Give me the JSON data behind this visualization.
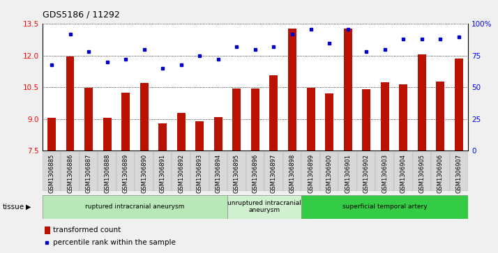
{
  "title": "GDS5186 / 11292",
  "samples": [
    "GSM1306885",
    "GSM1306886",
    "GSM1306887",
    "GSM1306888",
    "GSM1306889",
    "GSM1306890",
    "GSM1306891",
    "GSM1306892",
    "GSM1306893",
    "GSM1306894",
    "GSM1306895",
    "GSM1306896",
    "GSM1306897",
    "GSM1306898",
    "GSM1306899",
    "GSM1306900",
    "GSM1306901",
    "GSM1306902",
    "GSM1306903",
    "GSM1306904",
    "GSM1306905",
    "GSM1306906",
    "GSM1306907"
  ],
  "bar_values": [
    9.05,
    11.95,
    10.48,
    9.05,
    10.25,
    10.72,
    8.78,
    9.3,
    8.88,
    9.1,
    10.45,
    10.43,
    11.08,
    13.28,
    10.48,
    10.22,
    13.28,
    10.4,
    10.75,
    10.65,
    12.05,
    10.78,
    11.85
  ],
  "dot_values_pct": [
    68,
    92,
    78,
    70,
    72,
    80,
    65,
    68,
    75,
    72,
    82,
    80,
    82,
    92,
    96,
    85,
    96,
    78,
    80,
    88,
    88,
    88,
    90
  ],
  "ylim_left": [
    7.5,
    13.5
  ],
  "ylim_right": [
    0,
    100
  ],
  "yticks_left": [
    7.5,
    9.0,
    10.5,
    12.0,
    13.5
  ],
  "yticks_right": [
    0,
    25,
    50,
    75,
    100
  ],
  "ytick_labels_right": [
    "0",
    "25",
    "50",
    "75",
    "100%"
  ],
  "groups": [
    {
      "label": "ruptured intracranial aneurysm",
      "start": 0,
      "end": 10,
      "color": "#b8e8b8"
    },
    {
      "label": "unruptured intracranial\naneurysm",
      "start": 10,
      "end": 14,
      "color": "#d0f0d0"
    },
    {
      "label": "superficial temporal artery",
      "start": 14,
      "end": 23,
      "color": "#33cc44"
    }
  ],
  "bar_color": "#bb1100",
  "dot_color": "#0000cc",
  "legend_bar_label": "transformed count",
  "legend_dot_label": "percentile rank within the sample",
  "tissue_label": "tissue",
  "xtick_bg": "#d8d8d8",
  "fig_bg": "#f0f0f0",
  "plot_bg": "#ffffff"
}
